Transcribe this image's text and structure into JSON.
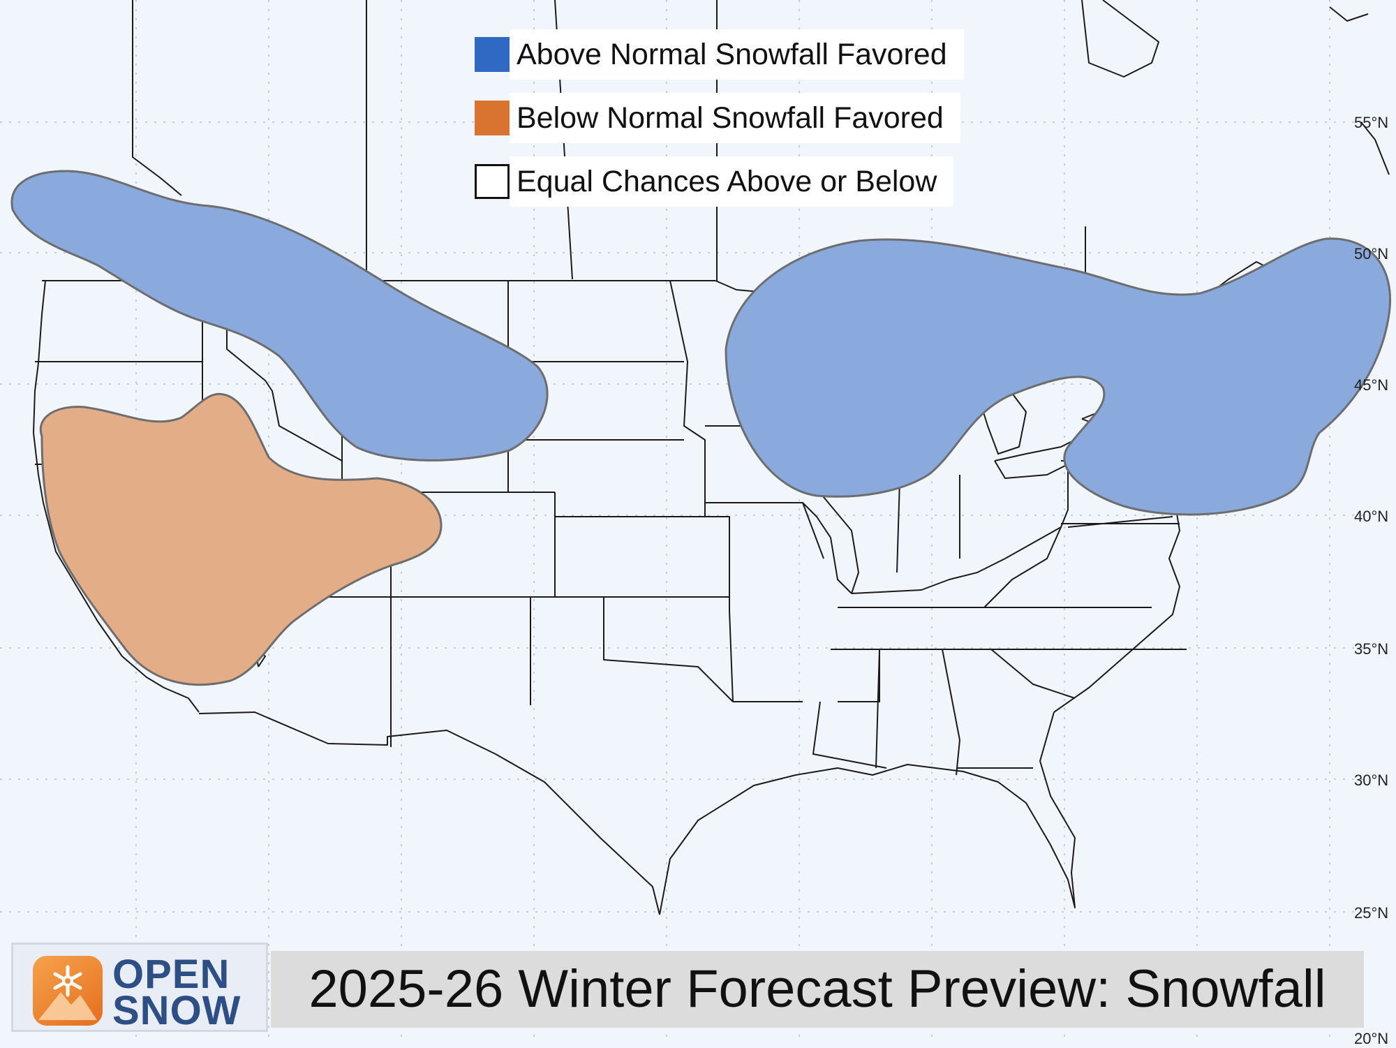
{
  "title": "2025-26 Winter Forecast Preview: Snowfall",
  "brand": {
    "line1": "OPEN",
    "line2": "SNOW",
    "colors": {
      "text": "#2d4f86",
      "tile": "#f08c33"
    }
  },
  "legend": [
    {
      "label": "Above Normal Snowfall Favored",
      "color": "#2f69c4"
    },
    {
      "label": "Below Normal Snowfall Favored",
      "color": "#d8742f"
    },
    {
      "label": "Equal Chances Above or Below",
      "color": "#ffffff"
    }
  ],
  "latitude_labels": [
    "55°N",
    "50°N",
    "45°N",
    "40°N",
    "35°N",
    "30°N",
    "25°N",
    "20°N"
  ],
  "map": {
    "region": "Contiguous United States",
    "gridlines": "dotted",
    "above_normal_regions": [
      "Pacific Northwest / Northern Rockies",
      "Great Lakes / Upper Midwest / Northeast"
    ],
    "below_normal_regions": [
      "California / Great Basin / Southwest"
    ],
    "fill_colors": {
      "above": "#8aa9dd",
      "below": "#e3ad88",
      "outline": "#666666"
    }
  }
}
